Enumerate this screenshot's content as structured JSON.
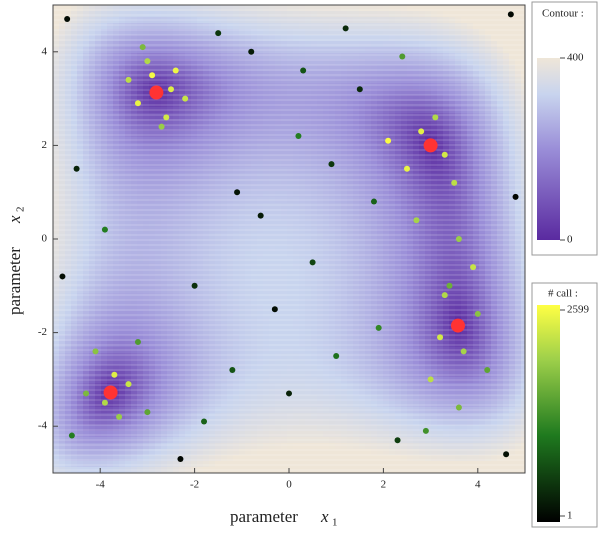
{
  "chart_data": {
    "type": "contour-scatter",
    "xlabel": "parameter",
    "xlabel_var": "x",
    "xlabel_sub": "1",
    "ylabel": "parameter",
    "ylabel_var": "x",
    "ylabel_sub": "2",
    "xlim": [
      -5,
      5
    ],
    "ylim": [
      -5,
      5
    ],
    "xticks": [
      -4,
      -2,
      0,
      2,
      4
    ],
    "yticks": [
      -4,
      -2,
      0,
      2,
      4
    ],
    "contour_title": "Contour :",
    "contour_lim": [
      0,
      400
    ],
    "contour_ticks": [
      0,
      400
    ],
    "calls_title": "# call :",
    "calls_lim": [
      1,
      2599
    ],
    "calls_ticks": [
      1,
      2599
    ],
    "minima": {
      "color": "#ff3333",
      "x": [
        -2.81,
        3.0,
        -3.78,
        3.58
      ],
      "y": [
        3.13,
        2.0,
        -3.28,
        -1.85
      ]
    },
    "points": {
      "x": [
        -2.9,
        -2.5,
        -3.2,
        -2.6,
        -3.0,
        -2.2,
        -3.4,
        -2.7,
        -2.4,
        -3.1,
        2.8,
        3.3,
        2.5,
        3.1,
        2.1,
        3.5,
        2.7,
        3.6,
        3.9,
        3.3,
        4.0,
        3.2,
        3.7,
        3.4,
        4.2,
        3.0,
        -3.7,
        -3.9,
        -3.4,
        -4.1,
        -3.6,
        -3.2,
        -4.3,
        -3.0,
        -4.6,
        -1.5,
        -0.8,
        0.3,
        1.2,
        1.8,
        -1.1,
        0.5,
        -0.3,
        1.0,
        -2.0,
        2.3,
        -4.7,
        4.7,
        -4.5,
        4.6,
        0.2,
        -1.8,
        1.5,
        -0.6,
        2.9,
        -2.3,
        0.9,
        -4.8,
        4.8,
        3.6,
        -1.2,
        1.9,
        -3.9,
        0.0,
        2.4
      ],
      "y": [
        3.5,
        3.2,
        2.9,
        2.6,
        3.8,
        3.0,
        3.4,
        2.4,
        3.6,
        4.1,
        2.3,
        1.8,
        1.5,
        2.6,
        2.1,
        1.2,
        0.4,
        0.0,
        -0.6,
        -1.2,
        -1.6,
        -2.1,
        -2.4,
        -1.0,
        -2.8,
        -3.0,
        -2.9,
        -3.5,
        -3.1,
        -2.4,
        -3.8,
        -2.2,
        -3.3,
        -3.7,
        -4.2,
        4.4,
        4.0,
        3.6,
        4.5,
        0.8,
        1.0,
        -0.5,
        -1.5,
        -2.5,
        -1.0,
        -4.3,
        4.7,
        4.8,
        1.5,
        -4.6,
        2.2,
        -3.9,
        3.2,
        0.5,
        -4.1,
        -4.7,
        1.6,
        -0.8,
        0.9,
        -3.6,
        -2.8,
        -1.9,
        0.2,
        -3.3,
        3.9
      ],
      "calls": [
        2500,
        2300,
        2400,
        2200,
        1900,
        2100,
        2000,
        1700,
        2450,
        1500,
        2350,
        2200,
        2400,
        1900,
        2550,
        2000,
        1800,
        1700,
        2100,
        1900,
        1600,
        2200,
        1800,
        1400,
        1300,
        2000,
        2300,
        1900,
        2100,
        1600,
        1700,
        1200,
        1500,
        1300,
        900,
        400,
        200,
        600,
        300,
        700,
        150,
        500,
        100,
        800,
        350,
        450,
        80,
        60,
        250,
        120,
        900,
        700,
        300,
        200,
        1100,
        50,
        400,
        100,
        30,
        1500,
        600,
        1000,
        900,
        250,
        1200
      ]
    }
  }
}
